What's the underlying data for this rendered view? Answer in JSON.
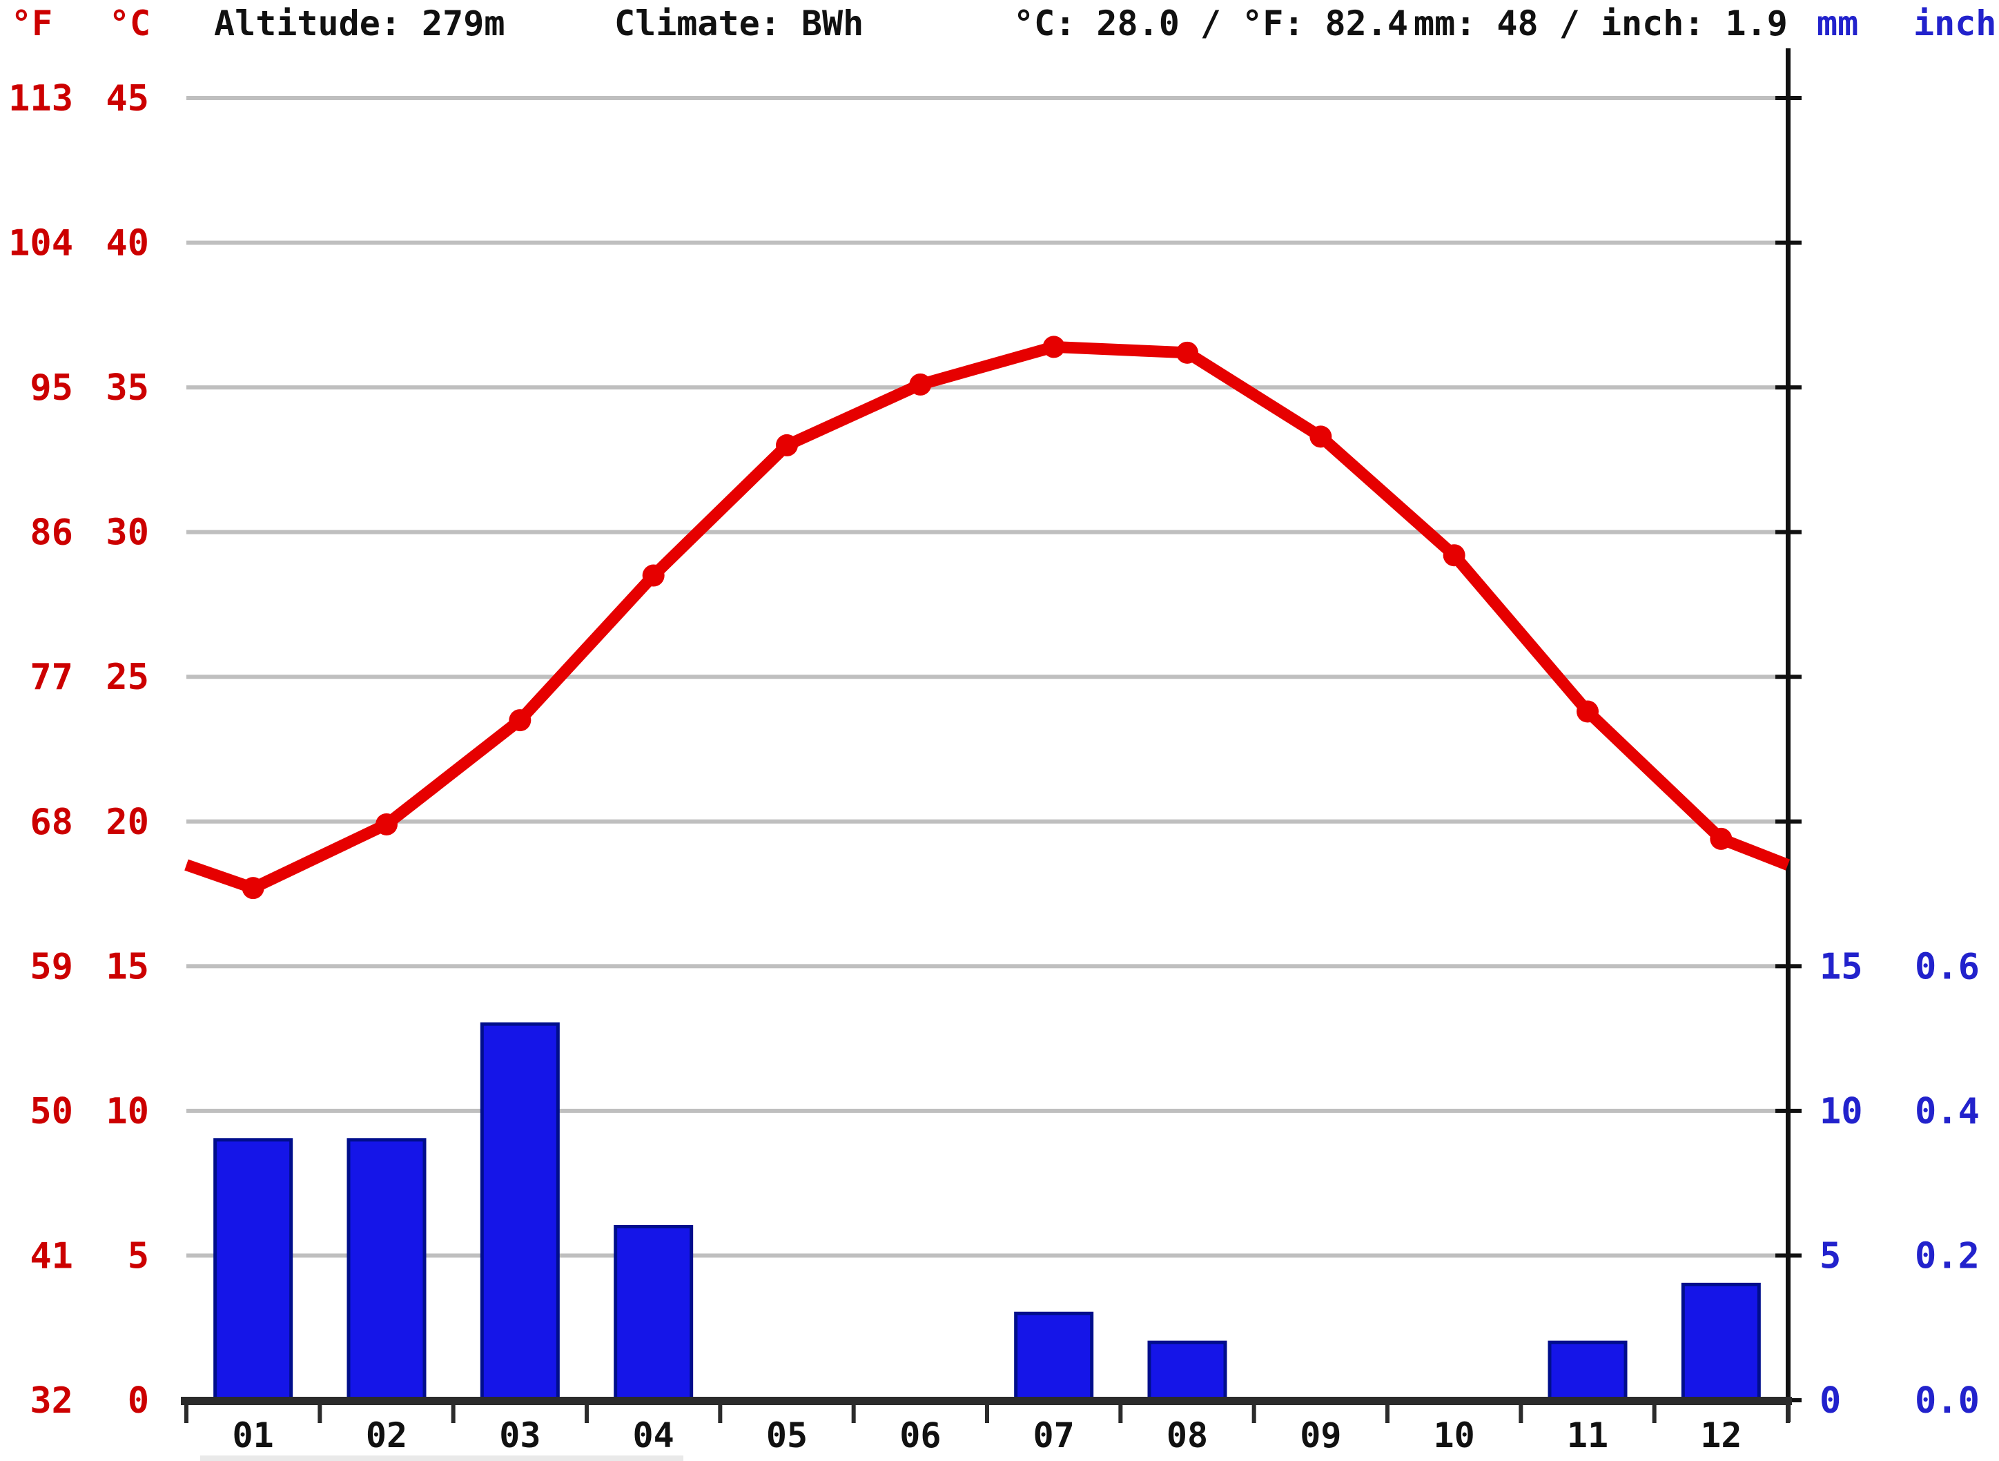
{
  "header": {
    "unit_f": "°F",
    "unit_c": "°C",
    "altitude": "Altitude: 279m",
    "climate": "Climate: BWh",
    "temp_summary": "°C: 28.0 / °F: 82.4",
    "precip_summary": "mm: 48 / inch: 1.9",
    "unit_mm": "mm",
    "unit_inch": "inch"
  },
  "colors": {
    "temp_line": "#e60000",
    "temp_label": "#cc0000",
    "precip_fill": "#1515e8",
    "precip_border": "#000e8c",
    "precip_label": "#2222cc",
    "grid": "#bfbfbf",
    "axis": "#2b2b2b",
    "header_text": "#111111"
  },
  "chart_data": {
    "type": "line+bar",
    "months": [
      "01",
      "02",
      "03",
      "04",
      "05",
      "06",
      "07",
      "08",
      "09",
      "10",
      "11",
      "12"
    ],
    "series": [
      {
        "name": "average-temperature-celsius",
        "type": "line",
        "values": [
          17.7,
          19.9,
          23.5,
          28.5,
          33.0,
          35.1,
          36.4,
          36.2,
          33.3,
          29.2,
          23.8,
          19.4
        ],
        "edge_value_c": 18.5
      },
      {
        "name": "precipitation-mm",
        "type": "bar",
        "values": [
          9,
          9,
          13,
          6,
          0,
          0,
          3,
          2,
          0,
          0,
          2,
          4
        ]
      }
    ],
    "left_axis": {
      "fahrenheit": [
        "113",
        "104",
        "95",
        "86",
        "77",
        "68",
        "59",
        "50",
        "41",
        "32"
      ],
      "celsius": [
        "45",
        "40",
        "35",
        "30",
        "25",
        "20",
        "15",
        "10",
        "5",
        "0"
      ]
    },
    "right_axis": {
      "mm": [
        "15",
        "10",
        "5",
        "0"
      ],
      "inch": [
        "0.6",
        "0.4",
        "0.2",
        "0.0"
      ]
    },
    "ylim_c": [
      0,
      45
    ],
    "grid_step_c": 5,
    "grid": true,
    "legend_position": "none"
  }
}
